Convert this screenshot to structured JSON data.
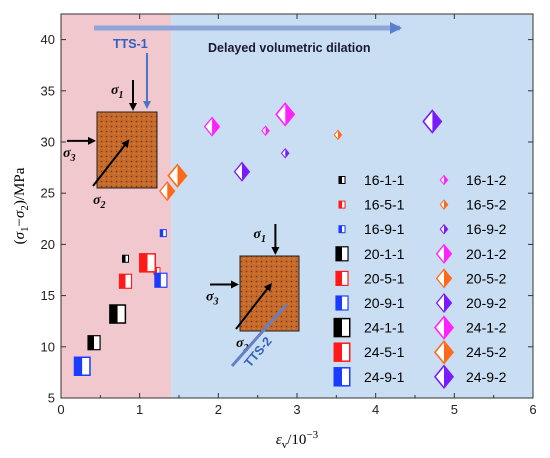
{
  "chart_data": {
    "type": "scatter",
    "xlabel": "εv/10⁻³",
    "ylabel": "(σ1−σ2)/MPa",
    "xlim": [
      0,
      6
    ],
    "ylim": [
      5,
      42.5
    ],
    "xticks": [
      0,
      1,
      2,
      3,
      4,
      5,
      6
    ],
    "yticks": [
      5,
      10,
      15,
      20,
      25,
      30,
      35,
      40
    ],
    "grid": false,
    "legend_position": "right-center",
    "regions": [
      {
        "x_range": [
          0,
          1.4
        ],
        "color": "#f2c8cf"
      },
      {
        "x_range": [
          1.4,
          6
        ],
        "color": "#c9def2"
      }
    ],
    "annotations": {
      "tts1": "TTS-1",
      "tts2": "TTS-2",
      "dilation": "Delayed volumetric dilation",
      "sigma1": "σ1",
      "sigma2": "σ2",
      "sigma3": "σ3"
    },
    "series": [
      {
        "name": "16-1-1",
        "color": "#000000",
        "marker": "half-square",
        "size": 7,
        "points": [
          [
            0.82,
            18.6
          ]
        ]
      },
      {
        "name": "16-5-1",
        "color": "#ff1a1a",
        "marker": "half-square",
        "size": 7,
        "points": [
          [
            1.22,
            17.4
          ]
        ]
      },
      {
        "name": "16-9-1",
        "color": "#1a3cff",
        "marker": "half-square",
        "size": 7,
        "points": [
          [
            1.3,
            21.1
          ]
        ]
      },
      {
        "name": "20-1-1",
        "color": "#000000",
        "marker": "half-square",
        "size": 14,
        "points": [
          [
            0.42,
            10.4
          ]
        ]
      },
      {
        "name": "20-5-1",
        "color": "#ff1a1a",
        "marker": "half-square",
        "size": 14,
        "points": [
          [
            0.82,
            16.4
          ]
        ]
      },
      {
        "name": "20-9-1",
        "color": "#1a3cff",
        "marker": "half-square",
        "size": 14,
        "points": [
          [
            1.27,
            16.5
          ]
        ]
      },
      {
        "name": "24-1-1",
        "color": "#000000",
        "marker": "half-square",
        "size": 18,
        "points": [
          [
            0.72,
            13.2
          ]
        ]
      },
      {
        "name": "24-5-1",
        "color": "#ff1a1a",
        "marker": "half-square",
        "size": 18,
        "points": [
          [
            1.1,
            18.2
          ]
        ]
      },
      {
        "name": "24-9-1",
        "color": "#1a3cff",
        "marker": "half-square",
        "size": 18,
        "points": [
          [
            0.27,
            8.1
          ]
        ]
      },
      {
        "name": "16-1-2",
        "color": "#ff22ff",
        "marker": "half-diamond",
        "size": 9,
        "points": [
          [
            2.6,
            31.1
          ]
        ]
      },
      {
        "name": "16-5-2",
        "color": "#ff6a1a",
        "marker": "half-diamond",
        "size": 9,
        "points": [
          [
            3.52,
            30.7
          ]
        ]
      },
      {
        "name": "16-9-2",
        "color": "#7a1aff",
        "marker": "half-diamond",
        "size": 9,
        "points": [
          [
            2.85,
            28.9
          ]
        ]
      },
      {
        "name": "20-1-2",
        "color": "#ff22ff",
        "marker": "half-diamond",
        "size": 18,
        "points": [
          [
            1.92,
            31.5
          ]
        ]
      },
      {
        "name": "20-5-2",
        "color": "#ff6a1a",
        "marker": "half-diamond",
        "size": 18,
        "points": [
          [
            1.35,
            25.2
          ]
        ]
      },
      {
        "name": "20-9-2",
        "color": "#7a1aff",
        "marker": "half-diamond",
        "size": 18,
        "points": [
          [
            2.3,
            27.1
          ]
        ]
      },
      {
        "name": "24-1-2",
        "color": "#ff22ff",
        "marker": "half-diamond",
        "size": 22,
        "points": [
          [
            2.85,
            32.7
          ]
        ]
      },
      {
        "name": "24-5-2",
        "color": "#ff6a1a",
        "marker": "half-diamond",
        "size": 22,
        "points": [
          [
            1.48,
            26.7
          ]
        ]
      },
      {
        "name": "24-9-2",
        "color": "#7a1aff",
        "marker": "half-diamond",
        "size": 22,
        "points": [
          [
            4.72,
            32.0
          ]
        ]
      }
    ]
  }
}
